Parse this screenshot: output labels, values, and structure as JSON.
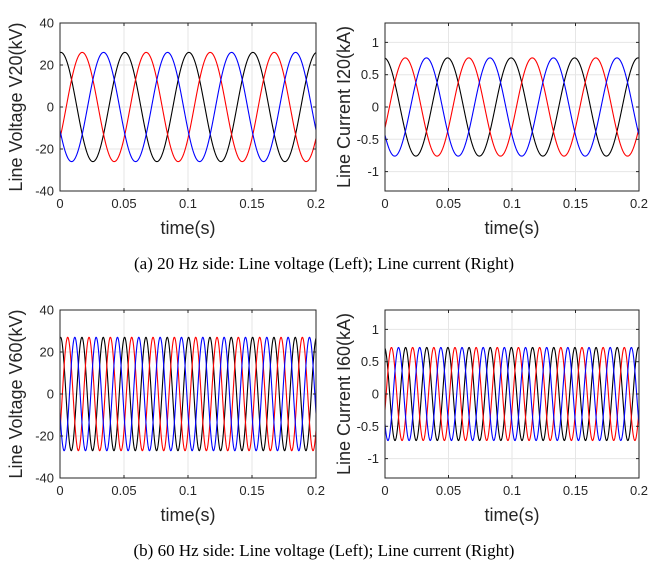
{
  "chart_data": [
    {
      "type": "line",
      "ylabel": "Line Voltage V20(kV)",
      "xlabel": "time(s)",
      "xlim": [
        0,
        0.2
      ],
      "ylim": [
        -40,
        40
      ],
      "xticks": [
        "0",
        "0.05",
        "0.1",
        "0.15",
        "0.2"
      ],
      "yticks": [
        "40",
        "20",
        "0",
        "-20",
        "-40"
      ],
      "grid": true,
      "frequency_hz": 20,
      "amplitude": 26,
      "series": [
        {
          "color": "#000000",
          "phase_deg": 85
        },
        {
          "color": "#ff0000",
          "phase_deg": -35
        },
        {
          "color": "#0000ff",
          "phase_deg": -155
        }
      ]
    },
    {
      "type": "line",
      "ylabel": "Line Current I20(kA)",
      "xlabel": "time(s)",
      "xlim": [
        0,
        0.2
      ],
      "ylim": [
        -1.3,
        1.3
      ],
      "xticks": [
        "0",
        "0.05",
        "0.1",
        "0.15",
        "0.2"
      ],
      "yticks": [
        "1",
        "0.5",
        "0",
        "-0.5",
        "-1"
      ],
      "grid": true,
      "frequency_hz": 20,
      "amplitude": 0.76,
      "series": [
        {
          "color": "#000000",
          "phase_deg": 95
        },
        {
          "color": "#ff0000",
          "phase_deg": -25
        },
        {
          "color": "#0000ff",
          "phase_deg": -145
        }
      ]
    },
    {
      "type": "line",
      "ylabel": "Line Voltage V60(kV)",
      "xlabel": "time(s)",
      "xlim": [
        0,
        0.2
      ],
      "ylim": [
        -40,
        40
      ],
      "xticks": [
        "0",
        "0.05",
        "0.1",
        "0.15",
        "0.2"
      ],
      "yticks": [
        "40",
        "20",
        "0",
        "-20",
        "-40"
      ],
      "grid": true,
      "frequency_hz": 60,
      "amplitude": 27,
      "series": [
        {
          "color": "#000000",
          "phase_deg": 80
        },
        {
          "color": "#ff0000",
          "phase_deg": -40
        },
        {
          "color": "#0000ff",
          "phase_deg": -160
        }
      ]
    },
    {
      "type": "line",
      "ylabel": "Line Current I60(kA)",
      "xlabel": "time(s)",
      "xlim": [
        0,
        0.2
      ],
      "ylim": [
        -1.3,
        1.3
      ],
      "xticks": [
        "0",
        "0.05",
        "0.1",
        "0.15",
        "0.2"
      ],
      "yticks": [
        "1",
        "0.5",
        "0",
        "-0.5",
        "-1"
      ],
      "grid": true,
      "frequency_hz": 60,
      "amplitude": 0.72,
      "series": [
        {
          "color": "#000000",
          "phase_deg": 100
        },
        {
          "color": "#ff0000",
          "phase_deg": -20
        },
        {
          "color": "#0000ff",
          "phase_deg": -140
        }
      ]
    }
  ],
  "captions": {
    "a": "(a) 20 Hz side: Line voltage (Left); Line current (Right)",
    "b": "(b) 60 Hz side: Line voltage (Left); Line current (Right)"
  }
}
